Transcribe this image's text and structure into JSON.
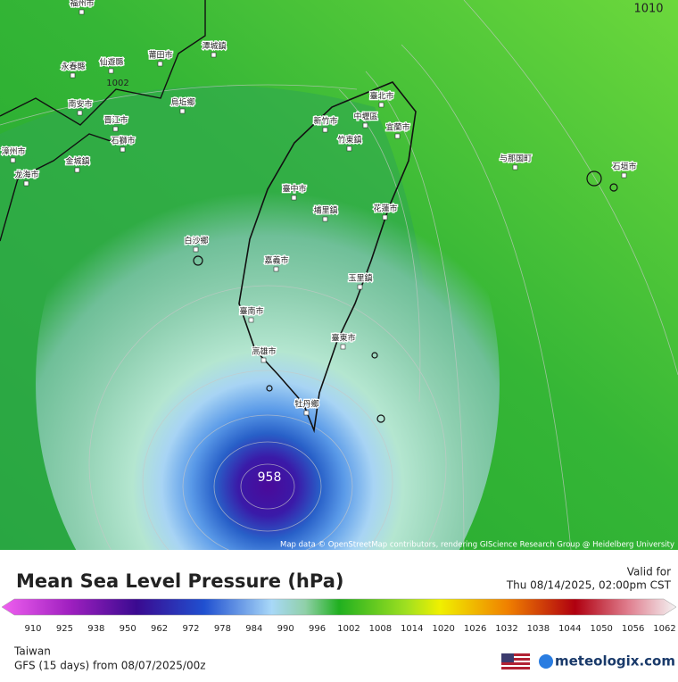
{
  "map": {
    "labels": [
      "福州市",
      "莆田市",
      "潭城鎮",
      "仙遊縣",
      "永春縣",
      "南安市",
      "晋江市",
      "石獅市",
      "烏坵鄉",
      "漳州市",
      "龙海市",
      "金城鎮",
      "臺北市",
      "中壢區",
      "新竹市",
      "竹東鎮",
      "宜蘭市",
      "臺中市",
      "埔里鎮",
      "花蓮市",
      "白沙鄉",
      "嘉義市",
      "玉里鎮",
      "臺南市",
      "臺東市",
      "高雄市",
      "牡丹鄉",
      "与那国町",
      "石垣市"
    ],
    "contour_labels": [
      "1010",
      "1002",
      "958"
    ],
    "attribution": "Map data © OpenStreetMap contributors, rendering GIScience Research Group @ Heidelberg University"
  },
  "legend": {
    "title": "Mean Sea Level Pressure (hPa)",
    "valid_label": "Valid for",
    "valid_time": "Thu 08/14/2025, 02:00pm CST",
    "scale_labels": [
      "910",
      "925",
      "938",
      "950",
      "962",
      "972",
      "978",
      "984",
      "990",
      "996",
      "1002",
      "1008",
      "1014",
      "1020",
      "1026",
      "1032",
      "1038",
      "1044",
      "1050",
      "1056",
      "1062"
    ]
  },
  "footer": {
    "region": "Taiwan",
    "model": "GFS (15 days) from 08/07/2025/00z",
    "logo": "meteologix.com"
  }
}
